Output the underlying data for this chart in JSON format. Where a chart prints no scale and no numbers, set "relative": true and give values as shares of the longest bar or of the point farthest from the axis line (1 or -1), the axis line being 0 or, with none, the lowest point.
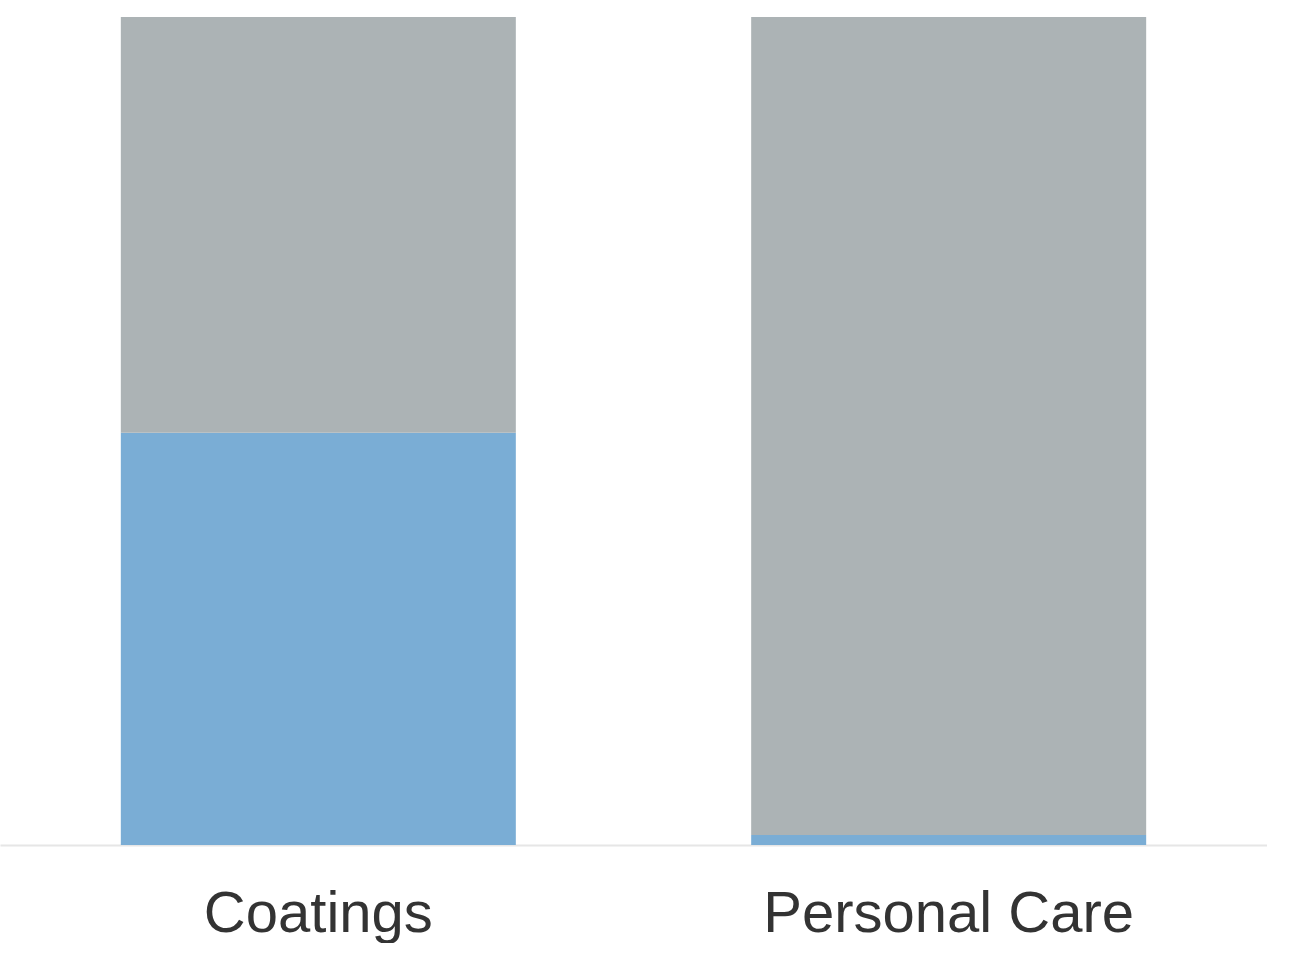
{
  "chart_data": {
    "type": "bar",
    "stacked": true,
    "relative": true,
    "categories": [
      "Coatings",
      "Personal Care"
    ],
    "series": [
      {
        "color": "#7aadd5",
        "values": [
          0.498,
          0.012
        ]
      },
      {
        "color": "#acb3b5",
        "values": [
          0.502,
          0.988
        ]
      }
    ],
    "grid": false
  }
}
